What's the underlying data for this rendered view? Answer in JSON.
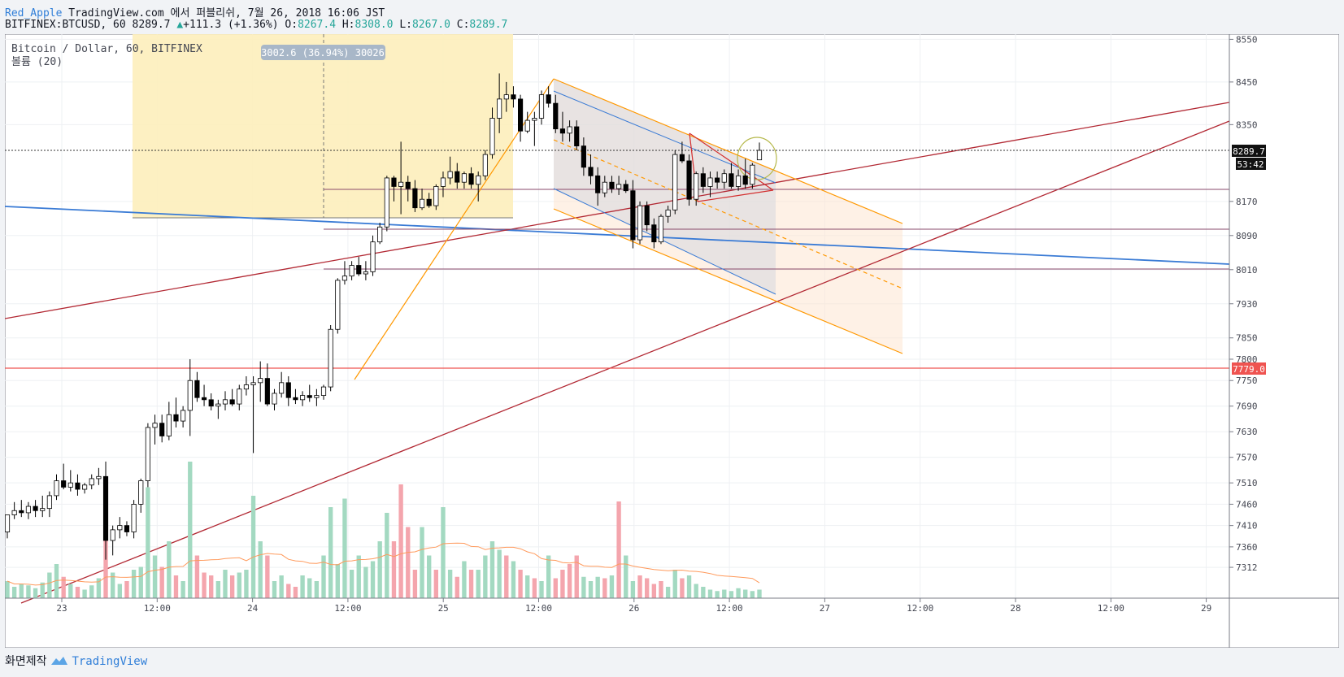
{
  "header": {
    "author": "Red_Apple",
    "publish_text": "TradingView.com 에서 퍼블리쉬, 7월 26, 2018 16:06 JST",
    "symbol": "BITFINEX:BTCUSD, 60",
    "last": "8289.7",
    "up_arrow": "▲",
    "change": "+111.3 (+1.36%)",
    "o_label": "O:",
    "o_value": "8267.4",
    "h_label": "H:",
    "h_value": "8308.0",
    "l_label": "L:",
    "l_value": "8267.0",
    "c_label": "C:",
    "c_value": "8289.7"
  },
  "legend": {
    "title": "Bitcoin / Dollar, 60, BITFINEX",
    "volume_label": "볼륨 (20)"
  },
  "measure_label": "3002.6 (36.94%) 30026",
  "badges": {
    "last_price": "8289.7",
    "countdown": "53:42",
    "red_level": "7779.0"
  },
  "footer": {
    "made_with": "화면제작",
    "brand": "TradingView"
  },
  "colors": {
    "up": "#ffffff",
    "down": "#000000",
    "vol_up": "#a3d9c1",
    "vol_down": "#f4a5ad",
    "red_level": "#ef5350",
    "trend_red": "#b22833",
    "blue_line": "#3a7bd5",
    "orange": "#ff9800",
    "purple": "#8a4a6b"
  },
  "chart_data": {
    "type": "candlestick",
    "title": "Bitcoin / Dollar, 60, BITFINEX",
    "y_ticks": [
      8550,
      8450,
      8350,
      8170,
      8090,
      8010,
      7930,
      7850,
      7800,
      7750,
      7690,
      7630,
      7570,
      7510,
      7460,
      7410,
      7360,
      7312
    ],
    "x_ticks": [
      "23",
      "12:00",
      "24",
      "12:00",
      "25",
      "12:00",
      "26",
      "12:00",
      "27",
      "12:00",
      "28",
      "12:00",
      "29"
    ],
    "candles": [
      {
        "o": 7395,
        "h": 7435,
        "l": 7380,
        "c": 7435
      },
      {
        "o": 7435,
        "h": 7465,
        "l": 7425,
        "c": 7445
      },
      {
        "o": 7445,
        "h": 7470,
        "l": 7430,
        "c": 7440
      },
      {
        "o": 7440,
        "h": 7465,
        "l": 7425,
        "c": 7455
      },
      {
        "o": 7455,
        "h": 7470,
        "l": 7430,
        "c": 7445
      },
      {
        "o": 7445,
        "h": 7480,
        "l": 7430,
        "c": 7450
      },
      {
        "o": 7450,
        "h": 7490,
        "l": 7430,
        "c": 7480
      },
      {
        "o": 7480,
        "h": 7530,
        "l": 7470,
        "c": 7515
      },
      {
        "o": 7515,
        "h": 7555,
        "l": 7495,
        "c": 7500
      },
      {
        "o": 7500,
        "h": 7540,
        "l": 7490,
        "c": 7510
      },
      {
        "o": 7510,
        "h": 7530,
        "l": 7480,
        "c": 7495
      },
      {
        "o": 7495,
        "h": 7510,
        "l": 7485,
        "c": 7505
      },
      {
        "o": 7505,
        "h": 7530,
        "l": 7495,
        "c": 7520
      },
      {
        "o": 7520,
        "h": 7545,
        "l": 7505,
        "c": 7525
      },
      {
        "o": 7525,
        "h": 7560,
        "l": 7330,
        "c": 7375
      },
      {
        "o": 7375,
        "h": 7410,
        "l": 7340,
        "c": 7400
      },
      {
        "o": 7400,
        "h": 7430,
        "l": 7380,
        "c": 7410
      },
      {
        "o": 7410,
        "h": 7420,
        "l": 7385,
        "c": 7395
      },
      {
        "o": 7395,
        "h": 7470,
        "l": 7380,
        "c": 7460
      },
      {
        "o": 7460,
        "h": 7520,
        "l": 7440,
        "c": 7515
      },
      {
        "o": 7515,
        "h": 7650,
        "l": 7500,
        "c": 7640
      },
      {
        "o": 7640,
        "h": 7670,
        "l": 7600,
        "c": 7650
      },
      {
        "o": 7650,
        "h": 7670,
        "l": 7605,
        "c": 7620
      },
      {
        "o": 7620,
        "h": 7700,
        "l": 7610,
        "c": 7670
      },
      {
        "o": 7670,
        "h": 7710,
        "l": 7640,
        "c": 7655
      },
      {
        "o": 7655,
        "h": 7690,
        "l": 7640,
        "c": 7680
      },
      {
        "o": 7680,
        "h": 7800,
        "l": 7620,
        "c": 7750
      },
      {
        "o": 7750,
        "h": 7770,
        "l": 7700,
        "c": 7710
      },
      {
        "o": 7710,
        "h": 7740,
        "l": 7690,
        "c": 7705
      },
      {
        "o": 7705,
        "h": 7720,
        "l": 7680,
        "c": 7690
      },
      {
        "o": 7690,
        "h": 7705,
        "l": 7660,
        "c": 7695
      },
      {
        "o": 7695,
        "h": 7725,
        "l": 7680,
        "c": 7705
      },
      {
        "o": 7705,
        "h": 7730,
        "l": 7690,
        "c": 7695
      },
      {
        "o": 7695,
        "h": 7740,
        "l": 7680,
        "c": 7730
      },
      {
        "o": 7730,
        "h": 7760,
        "l": 7715,
        "c": 7740
      },
      {
        "o": 7740,
        "h": 7760,
        "l": 7580,
        "c": 7745
      },
      {
        "o": 7745,
        "h": 7795,
        "l": 7700,
        "c": 7755
      },
      {
        "o": 7755,
        "h": 7790,
        "l": 7690,
        "c": 7695
      },
      {
        "o": 7695,
        "h": 7730,
        "l": 7680,
        "c": 7720
      },
      {
        "o": 7720,
        "h": 7770,
        "l": 7710,
        "c": 7745
      },
      {
        "o": 7745,
        "h": 7760,
        "l": 7690,
        "c": 7710
      },
      {
        "o": 7710,
        "h": 7730,
        "l": 7695,
        "c": 7705
      },
      {
        "o": 7705,
        "h": 7725,
        "l": 7690,
        "c": 7715
      },
      {
        "o": 7715,
        "h": 7740,
        "l": 7700,
        "c": 7710
      },
      {
        "o": 7710,
        "h": 7730,
        "l": 7690,
        "c": 7715
      },
      {
        "o": 7715,
        "h": 7740,
        "l": 7705,
        "c": 7735
      },
      {
        "o": 7735,
        "h": 7880,
        "l": 7725,
        "c": 7870
      },
      {
        "o": 7870,
        "h": 7990,
        "l": 7860,
        "c": 7985
      },
      {
        "o": 7985,
        "h": 8030,
        "l": 7975,
        "c": 7995
      },
      {
        "o": 7995,
        "h": 8030,
        "l": 7985,
        "c": 8020
      },
      {
        "o": 8020,
        "h": 8040,
        "l": 7995,
        "c": 8000
      },
      {
        "o": 8000,
        "h": 8030,
        "l": 7985,
        "c": 8005
      },
      {
        "o": 8005,
        "h": 8090,
        "l": 7995,
        "c": 8075
      },
      {
        "o": 8075,
        "h": 8120,
        "l": 8070,
        "c": 8110
      },
      {
        "o": 8110,
        "h": 8230,
        "l": 8100,
        "c": 8225
      },
      {
        "o": 8225,
        "h": 8230,
        "l": 8170,
        "c": 8205
      },
      {
        "o": 8205,
        "h": 8310,
        "l": 8140,
        "c": 8215
      },
      {
        "o": 8215,
        "h": 8230,
        "l": 8170,
        "c": 8200
      },
      {
        "o": 8200,
        "h": 8220,
        "l": 8145,
        "c": 8155
      },
      {
        "o": 8155,
        "h": 8200,
        "l": 8150,
        "c": 8175
      },
      {
        "o": 8175,
        "h": 8190,
        "l": 8155,
        "c": 8160
      },
      {
        "o": 8160,
        "h": 8210,
        "l": 8150,
        "c": 8205
      },
      {
        "o": 8205,
        "h": 8240,
        "l": 8180,
        "c": 8225
      },
      {
        "o": 8225,
        "h": 8275,
        "l": 8210,
        "c": 8240
      },
      {
        "o": 8240,
        "h": 8260,
        "l": 8200,
        "c": 8215
      },
      {
        "o": 8215,
        "h": 8240,
        "l": 8200,
        "c": 8235
      },
      {
        "o": 8235,
        "h": 8250,
        "l": 8200,
        "c": 8210
      },
      {
        "o": 8210,
        "h": 8240,
        "l": 8170,
        "c": 8230
      },
      {
        "o": 8230,
        "h": 8290,
        "l": 8220,
        "c": 8280
      },
      {
        "o": 8280,
        "h": 8390,
        "l": 8270,
        "c": 8365
      },
      {
        "o": 8365,
        "h": 8470,
        "l": 8330,
        "c": 8410
      },
      {
        "o": 8410,
        "h": 8450,
        "l": 8380,
        "c": 8420
      },
      {
        "o": 8420,
        "h": 8440,
        "l": 8390,
        "c": 8410
      },
      {
        "o": 8410,
        "h": 8420,
        "l": 8310,
        "c": 8335
      },
      {
        "o": 8335,
        "h": 8380,
        "l": 8330,
        "c": 8360
      },
      {
        "o": 8360,
        "h": 8380,
        "l": 8300,
        "c": 8365
      },
      {
        "o": 8365,
        "h": 8430,
        "l": 8350,
        "c": 8420
      },
      {
        "o": 8420,
        "h": 8440,
        "l": 8390,
        "c": 8400
      },
      {
        "o": 8400,
        "h": 8420,
        "l": 8330,
        "c": 8340
      },
      {
        "o": 8340,
        "h": 8380,
        "l": 8310,
        "c": 8330
      },
      {
        "o": 8330,
        "h": 8360,
        "l": 8310,
        "c": 8345
      },
      {
        "o": 8345,
        "h": 8360,
        "l": 8290,
        "c": 8300
      },
      {
        "o": 8300,
        "h": 8320,
        "l": 8230,
        "c": 8250
      },
      {
        "o": 8250,
        "h": 8280,
        "l": 8210,
        "c": 8230
      },
      {
        "o": 8230,
        "h": 8250,
        "l": 8160,
        "c": 8190
      },
      {
        "o": 8190,
        "h": 8230,
        "l": 8180,
        "c": 8215
      },
      {
        "o": 8215,
        "h": 8230,
        "l": 8190,
        "c": 8200
      },
      {
        "o": 8200,
        "h": 8230,
        "l": 8185,
        "c": 8210
      },
      {
        "o": 8210,
        "h": 8220,
        "l": 8190,
        "c": 8195
      },
      {
        "o": 8195,
        "h": 8220,
        "l": 8060,
        "c": 8080
      },
      {
        "o": 8080,
        "h": 8170,
        "l": 8070,
        "c": 8160
      },
      {
        "o": 8160,
        "h": 8170,
        "l": 8100,
        "c": 8115
      },
      {
        "o": 8115,
        "h": 8130,
        "l": 8060,
        "c": 8075
      },
      {
        "o": 8075,
        "h": 8140,
        "l": 8070,
        "c": 8135
      },
      {
        "o": 8135,
        "h": 8160,
        "l": 8120,
        "c": 8150
      },
      {
        "o": 8150,
        "h": 8290,
        "l": 8140,
        "c": 8280
      },
      {
        "o": 8280,
        "h": 8310,
        "l": 8260,
        "c": 8265
      },
      {
        "o": 8265,
        "h": 8280,
        "l": 8160,
        "c": 8175
      },
      {
        "o": 8175,
        "h": 8240,
        "l": 8160,
        "c": 8235
      },
      {
        "o": 8235,
        "h": 8250,
        "l": 8190,
        "c": 8205
      },
      {
        "o": 8205,
        "h": 8240,
        "l": 8180,
        "c": 8225
      },
      {
        "o": 8225,
        "h": 8240,
        "l": 8200,
        "c": 8215
      },
      {
        "o": 8215,
        "h": 8245,
        "l": 8200,
        "c": 8235
      },
      {
        "o": 8235,
        "h": 8260,
        "l": 8200,
        "c": 8205
      },
      {
        "o": 8205,
        "h": 8245,
        "l": 8195,
        "c": 8230
      },
      {
        "o": 8230,
        "h": 8270,
        "l": 8200,
        "c": 8210
      },
      {
        "o": 8210,
        "h": 8260,
        "l": 8200,
        "c": 8255
      },
      {
        "o": 8267.4,
        "h": 8308,
        "l": 8267,
        "c": 8289.7
      }
    ],
    "volumes": [
      {
        "v": 0.12,
        "up": true
      },
      {
        "v": 0.08,
        "up": true
      },
      {
        "v": 0.1,
        "up": true
      },
      {
        "v": 0.09,
        "up": true
      },
      {
        "v": 0.07,
        "up": true
      },
      {
        "v": 0.11,
        "up": true
      },
      {
        "v": 0.18,
        "up": true
      },
      {
        "v": 0.24,
        "up": true
      },
      {
        "v": 0.15,
        "up": false
      },
      {
        "v": 0.1,
        "up": true
      },
      {
        "v": 0.08,
        "up": false
      },
      {
        "v": 0.06,
        "up": true
      },
      {
        "v": 0.09,
        "up": true
      },
      {
        "v": 0.14,
        "up": true
      },
      {
        "v": 0.62,
        "up": false
      },
      {
        "v": 0.18,
        "up": true
      },
      {
        "v": 0.1,
        "up": true
      },
      {
        "v": 0.12,
        "up": false
      },
      {
        "v": 0.2,
        "up": true
      },
      {
        "v": 0.22,
        "up": true
      },
      {
        "v": 0.78,
        "up": true
      },
      {
        "v": 0.3,
        "up": true
      },
      {
        "v": 0.22,
        "up": false
      },
      {
        "v": 0.4,
        "up": true
      },
      {
        "v": 0.16,
        "up": false
      },
      {
        "v": 0.12,
        "up": true
      },
      {
        "v": 0.96,
        "up": true
      },
      {
        "v": 0.3,
        "up": false
      },
      {
        "v": 0.18,
        "up": false
      },
      {
        "v": 0.16,
        "up": false
      },
      {
        "v": 0.12,
        "up": true
      },
      {
        "v": 0.2,
        "up": true
      },
      {
        "v": 0.16,
        "up": false
      },
      {
        "v": 0.18,
        "up": true
      },
      {
        "v": 0.2,
        "up": true
      },
      {
        "v": 0.72,
        "up": true
      },
      {
        "v": 0.4,
        "up": true
      },
      {
        "v": 0.3,
        "up": false
      },
      {
        "v": 0.12,
        "up": true
      },
      {
        "v": 0.16,
        "up": true
      },
      {
        "v": 0.1,
        "up": false
      },
      {
        "v": 0.08,
        "up": false
      },
      {
        "v": 0.16,
        "up": true
      },
      {
        "v": 0.14,
        "up": true
      },
      {
        "v": 0.12,
        "up": true
      },
      {
        "v": 0.3,
        "up": true
      },
      {
        "v": 0.64,
        "up": true
      },
      {
        "v": 0.24,
        "up": true
      },
      {
        "v": 0.7,
        "up": true
      },
      {
        "v": 0.2,
        "up": true
      },
      {
        "v": 0.3,
        "up": true
      },
      {
        "v": 0.22,
        "up": true
      },
      {
        "v": 0.26,
        "up": true
      },
      {
        "v": 0.4,
        "up": true
      },
      {
        "v": 0.6,
        "up": true
      },
      {
        "v": 0.4,
        "up": false
      },
      {
        "v": 0.8,
        "up": false
      },
      {
        "v": 0.5,
        "up": false
      },
      {
        "v": 0.2,
        "up": false
      },
      {
        "v": 0.5,
        "up": true
      },
      {
        "v": 0.3,
        "up": true
      },
      {
        "v": 0.2,
        "up": false
      },
      {
        "v": 0.64,
        "up": true
      },
      {
        "v": 0.2,
        "up": true
      },
      {
        "v": 0.15,
        "up": false
      },
      {
        "v": 0.26,
        "up": true
      },
      {
        "v": 0.2,
        "up": false
      },
      {
        "v": 0.2,
        "up": true
      },
      {
        "v": 0.3,
        "up": true
      },
      {
        "v": 0.4,
        "up": true
      },
      {
        "v": 0.34,
        "up": true
      },
      {
        "v": 0.3,
        "up": false
      },
      {
        "v": 0.26,
        "up": true
      },
      {
        "v": 0.2,
        "up": false
      },
      {
        "v": 0.16,
        "up": true
      },
      {
        "v": 0.14,
        "up": false
      },
      {
        "v": 0.12,
        "up": true
      },
      {
        "v": 0.3,
        "up": true
      },
      {
        "v": 0.14,
        "up": false
      },
      {
        "v": 0.2,
        "up": false
      },
      {
        "v": 0.24,
        "up": false
      },
      {
        "v": 0.3,
        "up": false
      },
      {
        "v": 0.15,
        "up": true
      },
      {
        "v": 0.12,
        "up": true
      },
      {
        "v": 0.15,
        "up": true
      },
      {
        "v": 0.14,
        "up": false
      },
      {
        "v": 0.16,
        "up": true
      },
      {
        "v": 0.68,
        "up": false
      },
      {
        "v": 0.3,
        "up": true
      },
      {
        "v": 0.12,
        "up": true
      },
      {
        "v": 0.16,
        "up": false
      },
      {
        "v": 0.14,
        "up": false
      },
      {
        "v": 0.1,
        "up": false
      },
      {
        "v": 0.12,
        "up": false
      },
      {
        "v": 0.08,
        "up": true
      },
      {
        "v": 0.2,
        "up": true
      },
      {
        "v": 0.14,
        "up": false
      },
      {
        "v": 0.16,
        "up": true
      },
      {
        "v": 0.1,
        "up": true
      },
      {
        "v": 0.08,
        "up": true
      },
      {
        "v": 0.06,
        "up": true
      },
      {
        "v": 0.05,
        "up": true
      },
      {
        "v": 0.06,
        "up": true
      },
      {
        "v": 0.05,
        "up": true
      },
      {
        "v": 0.07,
        "up": true
      },
      {
        "v": 0.06,
        "up": true
      },
      {
        "v": 0.05,
        "up": true
      },
      {
        "v": 0.06,
        "up": true
      }
    ],
    "horizontal_levels": {
      "red": 7779.0,
      "purple": [
        8190,
        8090,
        8010
      ],
      "last_price": 8289.7
    }
  }
}
